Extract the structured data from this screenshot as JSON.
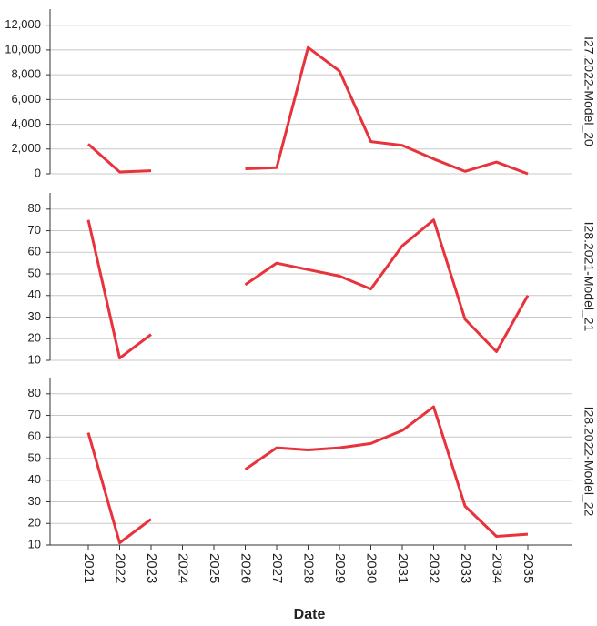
{
  "chart_data": {
    "type": "line",
    "x_label": "Date",
    "categories": [
      "2021",
      "2022",
      "2023",
      "2024",
      "2025",
      "2026",
      "2027",
      "2028",
      "2029",
      "2030",
      "2031",
      "2032",
      "2033",
      "2034",
      "2035"
    ],
    "grid": true,
    "series": [
      {
        "name": "I27.2022-Model_20",
        "color": "#e8323c",
        "values": [
          2400,
          150,
          250,
          null,
          null,
          400,
          500,
          10200,
          8300,
          2600,
          2300,
          1200,
          200,
          950,
          0
        ],
        "ylim": [
          0,
          13300
        ],
        "yticks": [
          0,
          {
            "value": 2000,
            "label": "2,000"
          },
          {
            "value": 4000,
            "label": "4,000"
          },
          {
            "value": 6000,
            "label": "6,000"
          },
          {
            "value": 8000,
            "label": "8,000"
          },
          {
            "value": 10000,
            "label": "10,000"
          },
          {
            "value": 12000,
            "label": "12,000"
          }
        ]
      },
      {
        "name": "I28.2021-Model_21",
        "color": "#e8323c",
        "values": [
          75,
          11,
          22,
          null,
          null,
          45,
          55,
          52,
          49,
          43,
          63,
          75,
          29,
          14,
          40
        ],
        "ylim": [
          10,
          87.5
        ],
        "yticks": [
          10,
          20,
          30,
          40,
          50,
          60,
          70,
          80
        ]
      },
      {
        "name": "I28.2022-Model_22",
        "color": "#e8323c",
        "values": [
          62,
          11,
          22,
          null,
          null,
          45,
          55,
          54,
          55,
          57,
          63,
          74,
          28,
          14,
          15
        ],
        "ylim": [
          10,
          87.5
        ],
        "yticks": [
          10,
          20,
          30,
          40,
          50,
          60,
          70,
          80
        ]
      }
    ]
  }
}
